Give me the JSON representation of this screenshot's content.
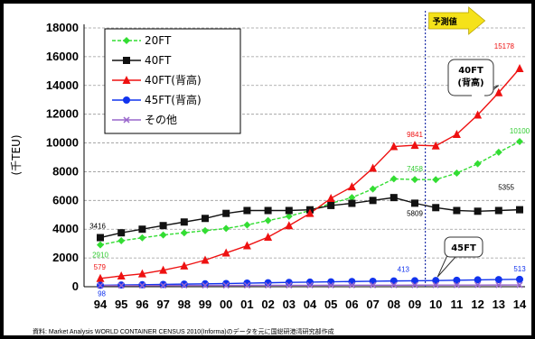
{
  "chart_data": {
    "type": "line",
    "title": "",
    "xlabel": "",
    "ylabel": "(千TEU)",
    "ylim": [
      0,
      18000
    ],
    "yticks": [
      0,
      2000,
      4000,
      6000,
      8000,
      10000,
      12000,
      14000,
      16000,
      18000
    ],
    "ytick_labels": [
      "0",
      "2000",
      "4000",
      "6000",
      "8000",
      "10000",
      "12000",
      "14000",
      "16000",
      "18000"
    ],
    "categories": [
      "94",
      "95",
      "96",
      "97",
      "98",
      "99",
      "00",
      "01",
      "02",
      "03",
      "04",
      "05",
      "06",
      "07",
      "08",
      "09",
      "10",
      "11",
      "12",
      "13",
      "14"
    ],
    "grid": "horizontal",
    "legend_position": "top-left",
    "forecast": {
      "label": "予測値",
      "start_category": "10"
    },
    "series": [
      {
        "name": "20FT",
        "color": "#33dd33",
        "marker": "diamond",
        "dashed": true,
        "values": [
          2910,
          3200,
          3400,
          3600,
          3750,
          3900,
          4050,
          4300,
          4600,
          4900,
          5300,
          5800,
          6200,
          6800,
          7500,
          7458,
          7450,
          7900,
          8550,
          9350,
          10100
        ]
      },
      {
        "name": "40FT",
        "color": "#111111",
        "marker": "square",
        "dashed": false,
        "values": [
          3416,
          3750,
          4000,
          4250,
          4500,
          4750,
          5100,
          5300,
          5300,
          5300,
          5350,
          5650,
          5800,
          6000,
          6200,
          5809,
          5500,
          5300,
          5250,
          5300,
          5355
        ]
      },
      {
        "name": "40FT(背高)",
        "color": "#ee1111",
        "marker": "triangle",
        "dashed": false,
        "values": [
          579,
          750,
          900,
          1150,
          1450,
          1850,
          2350,
          2850,
          3450,
          4250,
          5100,
          6150,
          6950,
          8250,
          9750,
          9841,
          9800,
          10600,
          11950,
          13500,
          15178
        ]
      },
      {
        "name": "45FT(背高)",
        "color": "#1133ee",
        "marker": "circle",
        "dashed": false,
        "values": [
          98,
          120,
          140,
          160,
          180,
          200,
          220,
          250,
          275,
          300,
          320,
          340,
          360,
          380,
          400,
          413,
          430,
          450,
          475,
          495,
          513
        ]
      },
      {
        "name": "その他",
        "color": "#9966cc",
        "marker": "x",
        "dashed": false,
        "values": [
          80,
          82,
          84,
          86,
          88,
          90,
          92,
          94,
          96,
          98,
          100,
          102,
          104,
          106,
          108,
          110,
          112,
          114,
          116,
          118,
          120
        ]
      }
    ],
    "data_labels": [
      {
        "series": 1,
        "index": 0,
        "text": "3416",
        "color": "#000000",
        "pos": "above-left"
      },
      {
        "series": 0,
        "index": 0,
        "text": "2910",
        "color": "#33cc33",
        "pos": "below"
      },
      {
        "series": 2,
        "index": 0,
        "text": "579",
        "color": "#ee1111",
        "pos": "above-left"
      },
      {
        "series": 3,
        "index": 0,
        "text": "98",
        "color": "#1133ee",
        "pos": "below-left"
      },
      {
        "series": 2,
        "index": 15,
        "text": "9841",
        "color": "#ee1111",
        "pos": "above"
      },
      {
        "series": 0,
        "index": 15,
        "text": "7458",
        "color": "#33cc33",
        "pos": "above"
      },
      {
        "series": 1,
        "index": 15,
        "text": "5809",
        "color": "#000000",
        "pos": "below"
      },
      {
        "series": 3,
        "index": 15,
        "text": "413",
        "color": "#1133ee",
        "pos": "above-left"
      },
      {
        "series": 2,
        "index": 20,
        "text": "15178",
        "color": "#ee1111",
        "pos": "far-above"
      },
      {
        "series": 0,
        "index": 20,
        "text": "10100",
        "color": "#33cc33",
        "pos": "above"
      },
      {
        "series": 1,
        "index": 20,
        "text": "5355",
        "color": "#000000",
        "pos": "far-above"
      },
      {
        "series": 3,
        "index": 20,
        "text": "513",
        "color": "#1133ee",
        "pos": "above"
      }
    ],
    "callouts": [
      {
        "lines": [
          "40FT",
          "(背高)"
        ],
        "target_series": 2
      },
      {
        "lines": [
          "45FT"
        ],
        "target_series": 3
      }
    ],
    "source_note": "資料: Market Analysis WORLD CONTAINER CENSUS 2010(Informa)のデータを元に国総研港湾研究部作成"
  }
}
